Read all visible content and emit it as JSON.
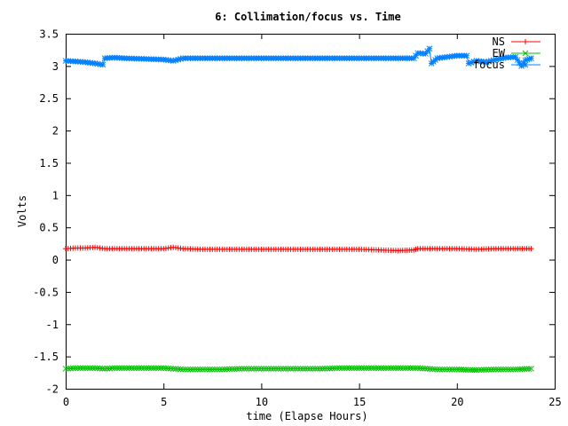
{
  "chart_data": {
    "type": "line",
    "title": "6: Collimation/focus vs. Time",
    "xlabel": "time (Elapse Hours)",
    "ylabel": "Volts",
    "xlim": [
      0,
      25
    ],
    "ylim": [
      -2,
      3.5
    ],
    "x_ticks": [
      "0",
      "5",
      "10",
      "15",
      "20",
      "25"
    ],
    "y_ticks": [
      "-2",
      "-1.5",
      "-1",
      "-0.5",
      "0",
      "0.5",
      "1",
      "1.5",
      "2",
      "2.5",
      "3",
      "3.5"
    ],
    "grid": false,
    "legend_position": "top-right",
    "series": [
      {
        "name": "NS",
        "color": "#ff0000",
        "marker": "plus",
        "points": [
          [
            0,
            0.17
          ],
          [
            0.5,
            0.18
          ],
          [
            1,
            0.18
          ],
          [
            1.5,
            0.19
          ],
          [
            2,
            0.17
          ],
          [
            2.5,
            0.17
          ],
          [
            3,
            0.17
          ],
          [
            4,
            0.17
          ],
          [
            5,
            0.17
          ],
          [
            5.5,
            0.19
          ],
          [
            6,
            0.17
          ],
          [
            7,
            0.16
          ],
          [
            8,
            0.16
          ],
          [
            9,
            0.16
          ],
          [
            10,
            0.16
          ],
          [
            11,
            0.16
          ],
          [
            12,
            0.16
          ],
          [
            13,
            0.16
          ],
          [
            14,
            0.16
          ],
          [
            15,
            0.16
          ],
          [
            16,
            0.15
          ],
          [
            17,
            0.14
          ],
          [
            17.8,
            0.15
          ],
          [
            18,
            0.17
          ],
          [
            19,
            0.17
          ],
          [
            20,
            0.17
          ],
          [
            21,
            0.16
          ],
          [
            22,
            0.17
          ],
          [
            23,
            0.17
          ],
          [
            23.8,
            0.17
          ]
        ]
      },
      {
        "name": "EW",
        "color": "#00c000",
        "marker": "cross",
        "points": [
          [
            0,
            -1.69
          ],
          [
            0.5,
            -1.68
          ],
          [
            1,
            -1.68
          ],
          [
            1.5,
            -1.68
          ],
          [
            2,
            -1.69
          ],
          [
            2.5,
            -1.68
          ],
          [
            3,
            -1.68
          ],
          [
            4,
            -1.68
          ],
          [
            5,
            -1.68
          ],
          [
            5.5,
            -1.69
          ],
          [
            6,
            -1.7
          ],
          [
            7,
            -1.7
          ],
          [
            8,
            -1.7
          ],
          [
            9,
            -1.69
          ],
          [
            10,
            -1.69
          ],
          [
            11,
            -1.69
          ],
          [
            12,
            -1.69
          ],
          [
            13,
            -1.69
          ],
          [
            14,
            -1.68
          ],
          [
            15,
            -1.68
          ],
          [
            16,
            -1.68
          ],
          [
            17,
            -1.68
          ],
          [
            18,
            -1.68
          ],
          [
            18.5,
            -1.69
          ],
          [
            19,
            -1.7
          ],
          [
            20,
            -1.7
          ],
          [
            20.8,
            -1.71
          ],
          [
            21,
            -1.71
          ],
          [
            22,
            -1.7
          ],
          [
            23,
            -1.7
          ],
          [
            23.8,
            -1.69
          ]
        ]
      },
      {
        "name": "focus",
        "color": "#0080ff",
        "marker": "star",
        "points": [
          [
            0,
            3.08
          ],
          [
            0.5,
            3.07
          ],
          [
            1,
            3.06
          ],
          [
            1.5,
            3.04
          ],
          [
            1.9,
            3.02
          ],
          [
            2,
            3.12
          ],
          [
            2.5,
            3.13
          ],
          [
            3,
            3.12
          ],
          [
            4,
            3.11
          ],
          [
            5,
            3.1
          ],
          [
            5.5,
            3.08
          ],
          [
            6,
            3.12
          ],
          [
            7,
            3.12
          ],
          [
            8,
            3.12
          ],
          [
            9,
            3.12
          ],
          [
            10,
            3.12
          ],
          [
            11,
            3.12
          ],
          [
            12,
            3.12
          ],
          [
            13,
            3.12
          ],
          [
            14,
            3.12
          ],
          [
            15,
            3.12
          ],
          [
            16,
            3.12
          ],
          [
            17,
            3.12
          ],
          [
            17.8,
            3.12
          ],
          [
            18,
            3.2
          ],
          [
            18.4,
            3.19
          ],
          [
            18.6,
            3.27
          ],
          [
            18.7,
            3.04
          ],
          [
            19,
            3.12
          ],
          [
            19.5,
            3.14
          ],
          [
            20,
            3.16
          ],
          [
            20.5,
            3.16
          ],
          [
            20.6,
            3.04
          ],
          [
            21,
            3.08
          ],
          [
            21.5,
            3.06
          ],
          [
            22,
            3.1
          ],
          [
            22.5,
            3.13
          ],
          [
            23,
            3.14
          ],
          [
            23.3,
            3.0
          ],
          [
            23.5,
            3.09
          ],
          [
            23.8,
            3.12
          ]
        ]
      }
    ]
  }
}
